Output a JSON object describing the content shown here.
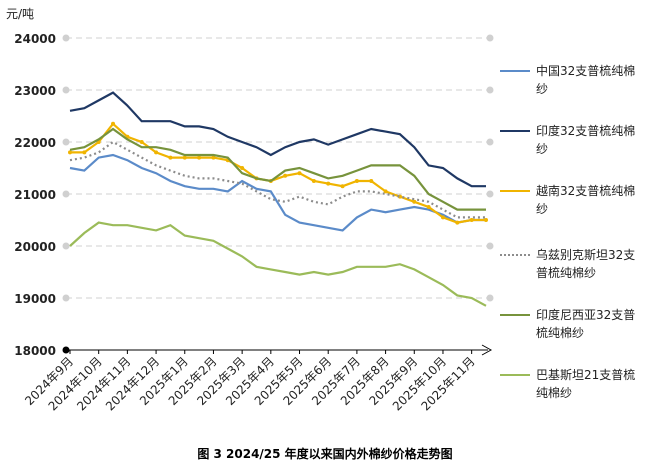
{
  "chart_data": {
    "type": "line",
    "title": "图 3 2024/25 年度以来国内外棉纱价格走势图",
    "y_label": "元/吨",
    "categories": [
      "2024年9月",
      null,
      "2024年10月",
      null,
      "2024年11月",
      null,
      "2024年12月",
      null,
      "2025年1月",
      null,
      "2025年2月",
      null,
      "2025年3月",
      null,
      "2025年4月",
      null,
      "2025年5月",
      null,
      "2025年6月",
      null,
      "2025年7月",
      null,
      "2025年8月",
      null,
      "2025年9月",
      null,
      "2025年10月",
      null,
      "2025年11月",
      null
    ],
    "ylim": [
      18000,
      24000
    ],
    "yticks": [
      18000,
      19000,
      20000,
      21000,
      22000,
      23000,
      24000
    ],
    "grid": true,
    "series": [
      {
        "name": "中国32支普梳纯棉纱",
        "color": "#5b8bc9",
        "line_style": "solid",
        "marker": false,
        "values": [
          21500,
          21450,
          21700,
          21750,
          21650,
          21500,
          21400,
          21250,
          21150,
          21100,
          21100,
          21050,
          21250,
          21100,
          21050,
          20600,
          20450,
          20400,
          20350,
          20300,
          20550,
          20700,
          20650,
          20700,
          20750,
          20700,
          20600,
          20450,
          20500,
          20500
        ]
      },
      {
        "name": "印度32支普梳纯棉纱",
        "color": "#1f3864",
        "line_style": "solid",
        "marker": false,
        "values": [
          22600,
          22650,
          22800,
          22950,
          22700,
          22400,
          22400,
          22400,
          22300,
          22300,
          22250,
          22100,
          22000,
          21900,
          21750,
          21900,
          22000,
          22050,
          21950,
          22050,
          22150,
          22250,
          22200,
          22150,
          21900,
          21550,
          21500,
          21300,
          21150,
          21150
        ]
      },
      {
        "name": "越南32支普梳纯棉纱",
        "color": "#f0b400",
        "line_style": "solid",
        "marker": true,
        "values": [
          21800,
          21800,
          22000,
          22350,
          22100,
          22000,
          21800,
          21700,
          21700,
          21700,
          21700,
          21650,
          21500,
          21300,
          21250,
          21350,
          21400,
          21250,
          21200,
          21150,
          21250,
          21250,
          21050,
          20950,
          20850,
          20750,
          20550,
          20450,
          20500,
          20500
        ]
      },
      {
        "name": "乌兹别克斯坦32支普梳纯棉纱",
        "color": "#8c8c8c",
        "line_style": "dotted",
        "marker": false,
        "values": [
          21650,
          21700,
          21800,
          22000,
          21850,
          21700,
          21550,
          21450,
          21350,
          21300,
          21300,
          21250,
          21200,
          21050,
          20900,
          20850,
          20950,
          20850,
          20800,
          20950,
          21050,
          21050,
          21000,
          20950,
          20900,
          20850,
          20700,
          20550,
          20550,
          20550
        ]
      },
      {
        "name": "印度尼西亚32支普梳纯棉纱",
        "color": "#77933c",
        "line_style": "solid",
        "marker": false,
        "values": [
          21850,
          21900,
          22050,
          22250,
          22050,
          21900,
          21900,
          21850,
          21750,
          21750,
          21750,
          21700,
          21400,
          21300,
          21250,
          21450,
          21500,
          21400,
          21300,
          21350,
          21450,
          21550,
          21550,
          21550,
          21350,
          21000,
          20850,
          20700,
          20700,
          20700
        ]
      },
      {
        "name": "巴基斯坦21支普梳纯棉纱",
        "color": "#9bbb59",
        "line_style": "solid",
        "marker": false,
        "values": [
          20000,
          20250,
          20450,
          20400,
          20400,
          20350,
          20300,
          20400,
          20200,
          20150,
          20100,
          19950,
          19800,
          19600,
          19550,
          19500,
          19450,
          19500,
          19450,
          19500,
          19600,
          19600,
          19600,
          19650,
          19550,
          19400,
          19250,
          19050,
          19000,
          18850
        ]
      }
    ]
  }
}
